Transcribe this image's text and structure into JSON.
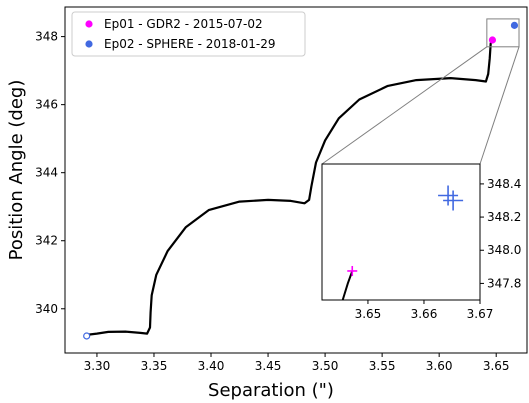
{
  "chart_data": {
    "type": "line",
    "xlabel": "Separation (\")",
    "ylabel": "Position Angle (deg)",
    "xlim": [
      3.272,
      3.677
    ],
    "ylim": [
      338.7,
      348.87
    ],
    "x_ticks": [
      3.3,
      3.35,
      3.4,
      3.45,
      3.5,
      3.55,
      3.6,
      3.65
    ],
    "x_tick_labels": [
      "3.30",
      "3.35",
      "3.40",
      "3.45",
      "3.50",
      "3.55",
      "3.60",
      "3.65"
    ],
    "y_ticks": [
      340,
      342,
      344,
      346,
      348
    ],
    "y_tick_labels": [
      "340",
      "342",
      "344",
      "346",
      "348"
    ],
    "grid": false,
    "legend": {
      "placement": "top-left",
      "entries": [
        {
          "label": "Ep01 - GDR2 - 2015-07-02",
          "color": "#ff00ff"
        },
        {
          "label": "Ep02 - SPHERE - 2018-01-29",
          "color": "#4169e1"
        }
      ]
    },
    "series": [
      {
        "kind": "track",
        "color": "#000000",
        "points": [
          [
            3.29,
            339.23
          ],
          [
            3.3,
            339.27
          ],
          [
            3.31,
            339.32
          ],
          [
            3.325,
            339.33
          ],
          [
            3.338,
            339.29
          ],
          [
            3.344,
            339.27
          ],
          [
            3.3465,
            339.45
          ],
          [
            3.347,
            339.9
          ],
          [
            3.348,
            340.4
          ],
          [
            3.352,
            341.0
          ],
          [
            3.362,
            341.7
          ],
          [
            3.378,
            342.4
          ],
          [
            3.398,
            342.9
          ],
          [
            3.425,
            343.15
          ],
          [
            3.45,
            343.2
          ],
          [
            3.47,
            343.17
          ],
          [
            3.482,
            343.1
          ],
          [
            3.486,
            343.2
          ],
          [
            3.488,
            343.6
          ],
          [
            3.492,
            344.3
          ],
          [
            3.5,
            344.95
          ],
          [
            3.512,
            345.6
          ],
          [
            3.53,
            346.15
          ],
          [
            3.555,
            346.55
          ],
          [
            3.58,
            346.72
          ],
          [
            3.61,
            346.78
          ],
          [
            3.632,
            346.72
          ],
          [
            3.641,
            346.68
          ],
          [
            3.643,
            346.9
          ],
          [
            3.6443,
            347.35
          ],
          [
            3.6452,
            347.8
          ],
          [
            3.6467,
            347.9
          ]
        ]
      },
      {
        "kind": "start-marker",
        "color": "#4169e1",
        "points": [
          [
            3.291,
            339.2
          ]
        ]
      },
      {
        "name": "Ep01 - GDR2 - 2015-07-02",
        "kind": "epoch",
        "color": "#ff00ff",
        "points": [
          [
            3.6467,
            347.9
          ]
        ]
      },
      {
        "name": "Ep02 - SPHERE - 2018-01-29",
        "kind": "epoch",
        "color": "#4169e1",
        "points": [
          [
            3.666,
            348.33
          ]
        ]
      }
    ],
    "zoom_region": {
      "xlim": [
        3.6418,
        3.67
      ],
      "ylim": [
        347.7,
        348.52
      ]
    },
    "inset": {
      "xlim": [
        3.6418,
        3.67
      ],
      "ylim": [
        347.7,
        348.52
      ],
      "x_ticks": [
        3.65,
        3.66,
        3.67
      ],
      "x_tick_labels": [
        "3.65",
        "3.66",
        "3.67"
      ],
      "y_ticks": [
        347.8,
        348.0,
        348.2,
        348.4
      ],
      "y_tick_labels": [
        "347.8",
        "348.0",
        "348.2",
        "348.4"
      ],
      "track": [
        [
          3.6455,
          347.7
        ],
        [
          3.6464,
          347.8
        ],
        [
          3.6472,
          347.875
        ]
      ],
      "crosses": [
        {
          "x": 3.6472,
          "y": 347.875,
          "color": "#ff00ff",
          "size": "small"
        },
        {
          "x": 3.6643,
          "y": 348.33,
          "color": "#4169e1",
          "size": "large"
        },
        {
          "x": 3.6652,
          "y": 348.3,
          "color": "#4169e1",
          "size": "large"
        }
      ]
    }
  }
}
